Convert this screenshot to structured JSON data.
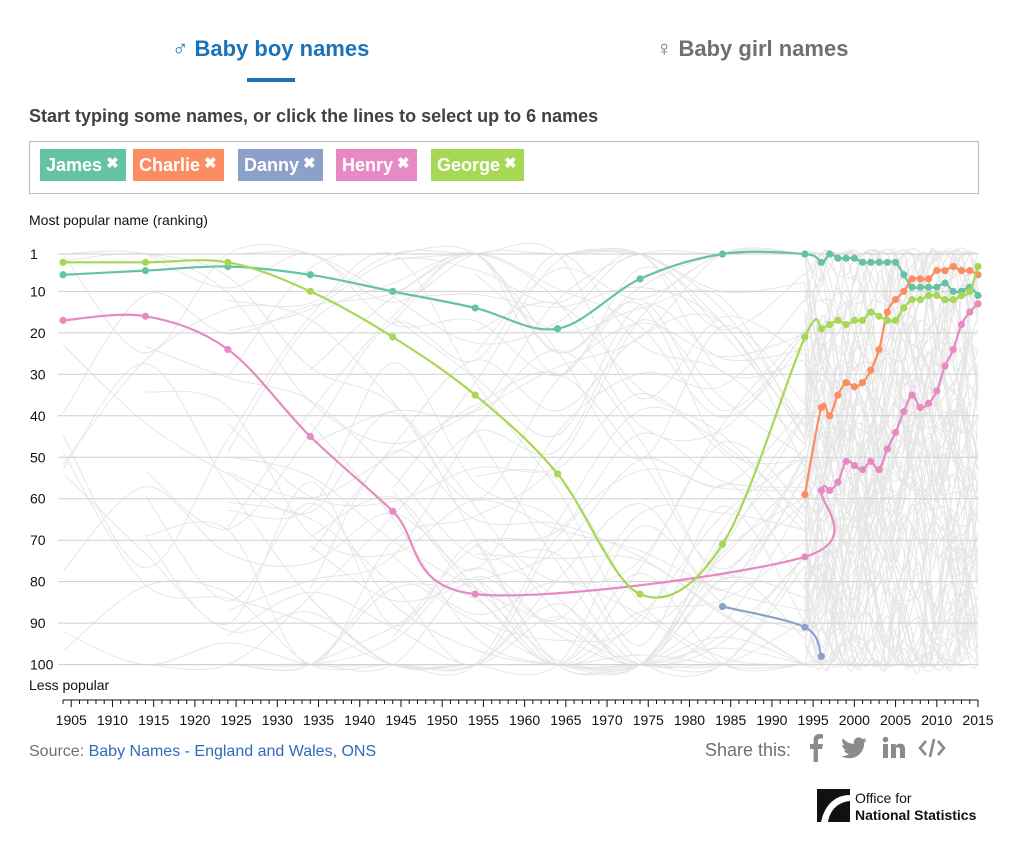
{
  "tabs": [
    {
      "symbol": "♂",
      "label": "Baby boy names",
      "active": true
    },
    {
      "symbol": "♀",
      "label": "Baby girl names",
      "active": false
    }
  ],
  "instructions": "Start typing some names, or click the lines to select up to 6 names",
  "chips": [
    {
      "label": "James",
      "remove": "✖",
      "color": "#66c2a5"
    },
    {
      "label": "Charlie",
      "remove": "✖",
      "color": "#fc8d62"
    },
    {
      "label": "Danny",
      "remove": "✖",
      "color": "#8da0cb"
    },
    {
      "label": "Henry",
      "remove": "✖",
      "color": "#e78ac3"
    },
    {
      "label": "George",
      "remove": "✖",
      "color": "#a6d854"
    }
  ],
  "source": {
    "prefix": "Source: ",
    "link_text": "Baby Names - England and Wales, ONS"
  },
  "share": {
    "label": "Share this:",
    "icons": [
      "facebook-icon",
      "twitter-icon",
      "linkedin-icon",
      "embed-icon"
    ]
  },
  "logo": {
    "line1": "Office for",
    "line2": "National Statistics"
  },
  "chart_data": {
    "type": "line",
    "ylabel": "Most popular name (ranking)",
    "ylabel_bottom": "Less popular",
    "xlim": [
      1904,
      2015
    ],
    "ylim": [
      1,
      100
    ],
    "y_inverted": true,
    "yticks": [
      1,
      10,
      20,
      30,
      40,
      50,
      60,
      70,
      80,
      90,
      100
    ],
    "xticks": [
      1905,
      1910,
      1915,
      1920,
      1925,
      1930,
      1935,
      1940,
      1945,
      1950,
      1955,
      1960,
      1965,
      1970,
      1975,
      1980,
      1985,
      1990,
      1995,
      2000,
      2005,
      2010,
      2015
    ],
    "grid": true,
    "background_lines_color": "#e6e6e6",
    "series": [
      {
        "name": "James",
        "color": "#66c2a5",
        "x": [
          1904,
          1914,
          1924,
          1934,
          1944,
          1954,
          1964,
          1974,
          1984,
          1994,
          1996,
          1997,
          1998,
          1999,
          2000,
          2001,
          2002,
          2003,
          2004,
          2005,
          2006,
          2007,
          2008,
          2009,
          2010,
          2011,
          2012,
          2013,
          2014,
          2015
        ],
        "y": [
          6,
          5,
          4,
          6,
          10,
          14,
          19,
          7,
          1,
          1,
          3,
          1,
          2,
          2,
          2,
          3,
          3,
          3,
          3,
          3,
          6,
          9,
          9,
          9,
          9,
          8,
          10,
          10,
          9,
          11
        ]
      },
      {
        "name": "Charlie",
        "color": "#fc8d62",
        "x": [
          1994,
          1996,
          1997,
          1998,
          1999,
          2000,
          2001,
          2002,
          2003,
          2004,
          2005,
          2006,
          2007,
          2008,
          2009,
          2010,
          2011,
          2012,
          2013,
          2014,
          2015
        ],
        "y": [
          59,
          38,
          40,
          35,
          32,
          33,
          32,
          29,
          24,
          15,
          12,
          10,
          7,
          7,
          7,
          5,
          5,
          4,
          5,
          5,
          6
        ]
      },
      {
        "name": "Danny",
        "color": "#8da0cb",
        "x": [
          1984,
          1994,
          1996
        ],
        "y": [
          86,
          91,
          98
        ]
      },
      {
        "name": "Henry",
        "color": "#e78ac3",
        "x": [
          1904,
          1914,
          1924,
          1934,
          1944,
          1954,
          1994,
          1996,
          1997,
          1998,
          1999,
          2000,
          2001,
          2002,
          2003,
          2004,
          2005,
          2006,
          2007,
          2008,
          2009,
          2010,
          2011,
          2012,
          2013,
          2014,
          2015
        ],
        "y": [
          17,
          16,
          24,
          45,
          63,
          83,
          74,
          58,
          58,
          56,
          51,
          52,
          53,
          51,
          53,
          48,
          44,
          39,
          35,
          38,
          37,
          34,
          28,
          24,
          18,
          15,
          13
        ]
      },
      {
        "name": "George",
        "color": "#a6d854",
        "x": [
          1904,
          1914,
          1924,
          1934,
          1944,
          1954,
          1964,
          1974,
          1984,
          1994,
          1996,
          1997,
          1998,
          1999,
          2000,
          2001,
          2002,
          2003,
          2004,
          2005,
          2006,
          2007,
          2008,
          2009,
          2010,
          2011,
          2012,
          2013,
          2014,
          2015
        ],
        "y": [
          3,
          3,
          3,
          10,
          21,
          35,
          54,
          83,
          71,
          21,
          19,
          18,
          17,
          18,
          17,
          17,
          15,
          16,
          17,
          17,
          14,
          12,
          12,
          11,
          11,
          12,
          12,
          11,
          10,
          4
        ]
      }
    ]
  }
}
